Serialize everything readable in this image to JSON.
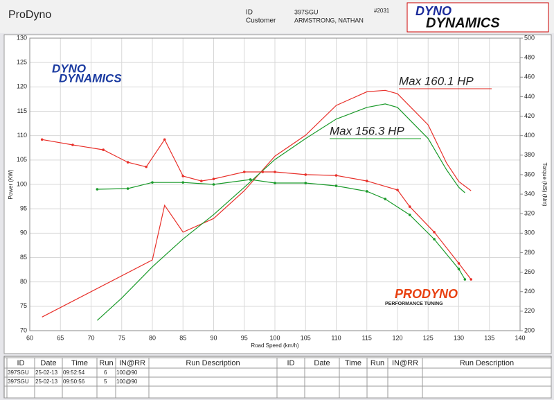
{
  "header": {
    "app": "ProDyno",
    "id_label": "ID",
    "id": "397SGU",
    "customer_label": "Customer",
    "customer": "ARMSTRONG, NATHAN",
    "number": "#2031",
    "logo": [
      "DYNO",
      "DYNAMICS"
    ]
  },
  "chart_data": {
    "type": "line",
    "xlabel": "Road Speed (km/h)",
    "ylabel": "Power (KW)",
    "y2label": "Torque (NS) (Nm)",
    "xlim": [
      60,
      140
    ],
    "xticks": [
      60,
      65,
      70,
      75,
      80,
      85,
      90,
      95,
      100,
      105,
      110,
      115,
      120,
      125,
      130,
      135,
      140
    ],
    "ylim": [
      70,
      130
    ],
    "yticks": [
      70,
      75,
      80,
      85,
      90,
      95,
      100,
      105,
      110,
      115,
      120,
      125,
      130
    ],
    "y2lim": [
      200,
      500
    ],
    "y2ticks": [
      200,
      220,
      240,
      260,
      280,
      300,
      320,
      340,
      360,
      380,
      400,
      420,
      440,
      460,
      480,
      500
    ],
    "grid": true,
    "annotations": [
      {
        "text": "Max 160.1 HP",
        "color": "#e0201a"
      },
      {
        "text": "Max 156.3 HP",
        "color": "#13a020"
      }
    ],
    "logos": [
      [
        "DYNO",
        "DYNAMICS"
      ],
      [
        "PRODYNO",
        "PERFORMANCE TUNING"
      ]
    ],
    "series": [
      {
        "color": "#e8302a",
        "axis": "y",
        "marker": false,
        "x": [
          62,
          80,
          82,
          85,
          90,
          95,
          100,
          105,
          110,
          115,
          118,
          120,
          125,
          128,
          130,
          132
        ],
        "values": [
          72.8,
          84.5,
          95.7,
          90.2,
          93,
          98.7,
          105.8,
          110.1,
          116.2,
          119,
          119.3,
          118.6,
          112.2,
          104.4,
          100.6,
          98.7
        ]
      },
      {
        "color": "#1a9a2a",
        "axis": "y",
        "marker": false,
        "x": [
          71,
          75,
          80,
          85,
          90,
          95,
          100,
          105,
          110,
          115,
          118,
          120,
          125,
          128,
          130,
          131
        ],
        "values": [
          72.1,
          76.7,
          83.1,
          88.8,
          93.8,
          99.4,
          105.1,
          109.4,
          113.4,
          115.8,
          116.5,
          115.8,
          109.4,
          103,
          99.4,
          98.3
        ]
      },
      {
        "color": "#e8302a",
        "axis": "y2",
        "marker": true,
        "x": [
          62,
          67,
          72,
          76,
          79,
          82,
          85,
          88,
          90,
          95,
          98,
          100,
          105,
          110,
          115,
          120,
          122,
          126,
          130,
          132
        ],
        "values": [
          396,
          390.5,
          385.5,
          372.7,
          368,
          396,
          358.5,
          353.5,
          355.6,
          362.8,
          362.8,
          362.8,
          360,
          359.2,
          353.5,
          344.3,
          327.2,
          301,
          269,
          252.6
        ]
      },
      {
        "color": "#1a9a2a",
        "axis": "y2",
        "marker": true,
        "x": [
          71,
          76,
          80,
          85,
          90,
          96,
          100,
          105,
          110,
          115,
          118,
          122,
          126,
          130,
          131
        ],
        "values": [
          345,
          345.7,
          352,
          352,
          350,
          355,
          351.4,
          351.4,
          348.5,
          342.9,
          335,
          318.7,
          293.8,
          263.3,
          252.6
        ]
      }
    ]
  },
  "table": {
    "columns": [
      "ID",
      "Date",
      "Time",
      "Run",
      "IN@RR",
      "Run Description",
      "ID",
      "Date",
      "Time",
      "Run",
      "IN@RR",
      "Run Description"
    ],
    "rows": [
      {
        "color": "#d0201a",
        "cells": [
          "397SGU",
          "25-02-13",
          "09:52:54",
          "6",
          "100@90"
        ]
      },
      {
        "color": "#109020",
        "cells": [
          "397SGU",
          "25-02-13",
          "09:50:56",
          "5",
          "100@90"
        ]
      }
    ]
  }
}
